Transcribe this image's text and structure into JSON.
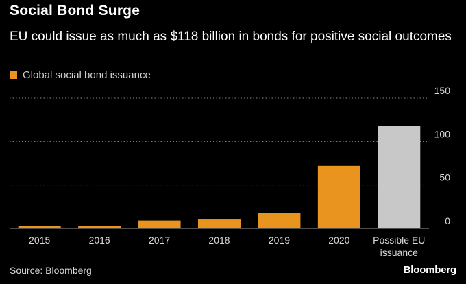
{
  "header": {
    "title": "Social Bond Surge",
    "subtitle": "EU could issue as much as $118 billion in bonds for positive social outcomes"
  },
  "legend": {
    "label": "Global social bond issuance",
    "color": "#e8941f"
  },
  "chart_data": {
    "type": "bar",
    "title": "Social Bond Surge",
    "subtitle": "EU could issue as much as $118 billion in bonds for positive social outcomes",
    "xlabel": "",
    "ylabel": "",
    "categories": [
      "2015",
      "2016",
      "2017",
      "2018",
      "2019",
      "2020",
      "Possible EU issuance"
    ],
    "category_labels": [
      [
        "2015"
      ],
      [
        "2016"
      ],
      [
        "2017"
      ],
      [
        "2018"
      ],
      [
        "2019"
      ],
      [
        "2020"
      ],
      [
        "Possible EU",
        "issuance"
      ]
    ],
    "values": [
      3,
      3,
      9,
      11,
      18,
      72,
      118
    ],
    "colors": [
      "#e8941f",
      "#e8941f",
      "#e8941f",
      "#e8941f",
      "#e8941f",
      "#e8941f",
      "#c8c8c8"
    ],
    "ylim": [
      0,
      150
    ],
    "yticks": [
      0,
      50,
      100,
      150
    ],
    "grid": true,
    "legend_position": "top-left"
  },
  "footer": {
    "source": "Source: Bloomberg",
    "brand": "Bloomberg"
  }
}
